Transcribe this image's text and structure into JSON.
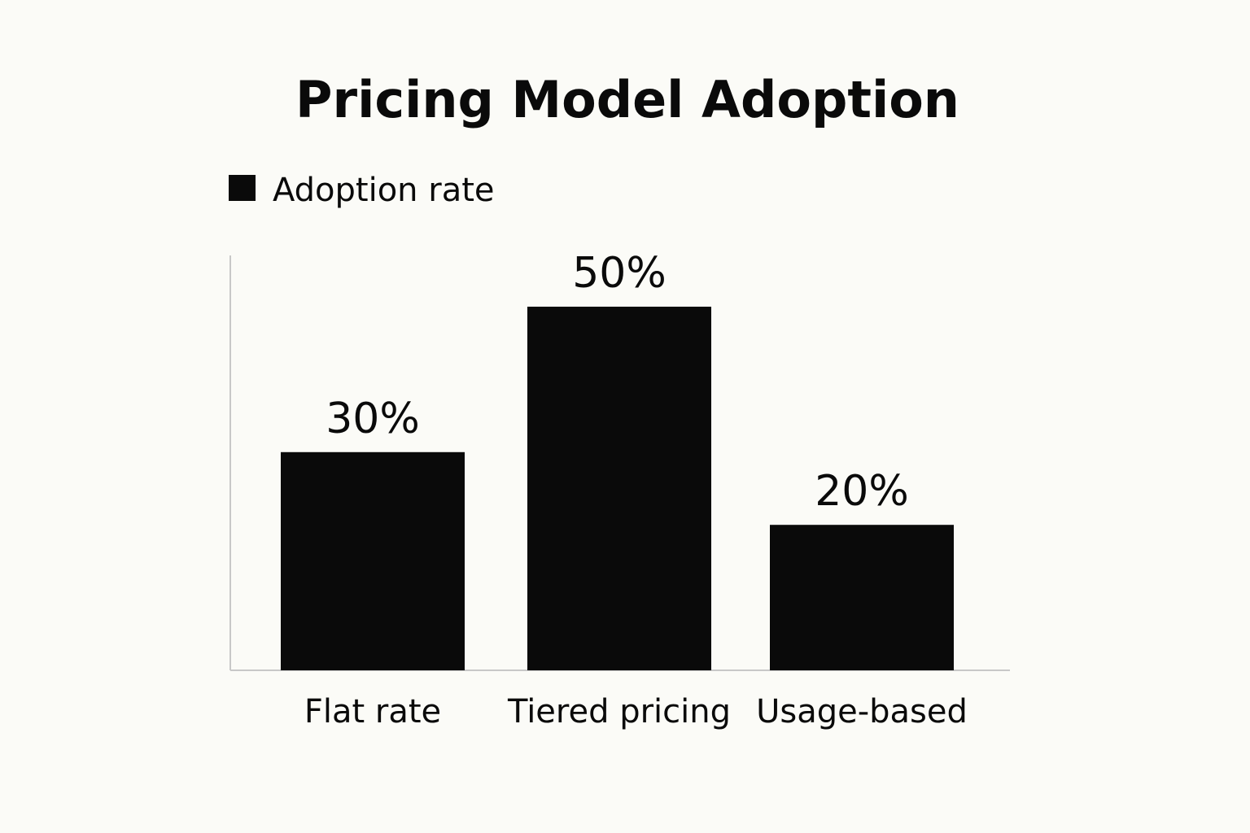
{
  "chart_data": {
    "type": "bar",
    "title": "Pricing Model Adoption",
    "categories": [
      "Flat rate",
      "Tiered pricing",
      "Usage-based"
    ],
    "series": [
      {
        "name": "Adoption rate",
        "values": [
          30,
          50,
          20
        ],
        "value_labels": [
          "30%",
          "50%",
          "20%"
        ]
      }
    ],
    "xlabel": "",
    "ylabel": "",
    "ylim": [
      0,
      50
    ],
    "grid": false,
    "legend": "top-left",
    "colors": {
      "bar": "#0a0a0a",
      "axis": "#c8c8c8",
      "background": "#fbfbf7"
    }
  }
}
